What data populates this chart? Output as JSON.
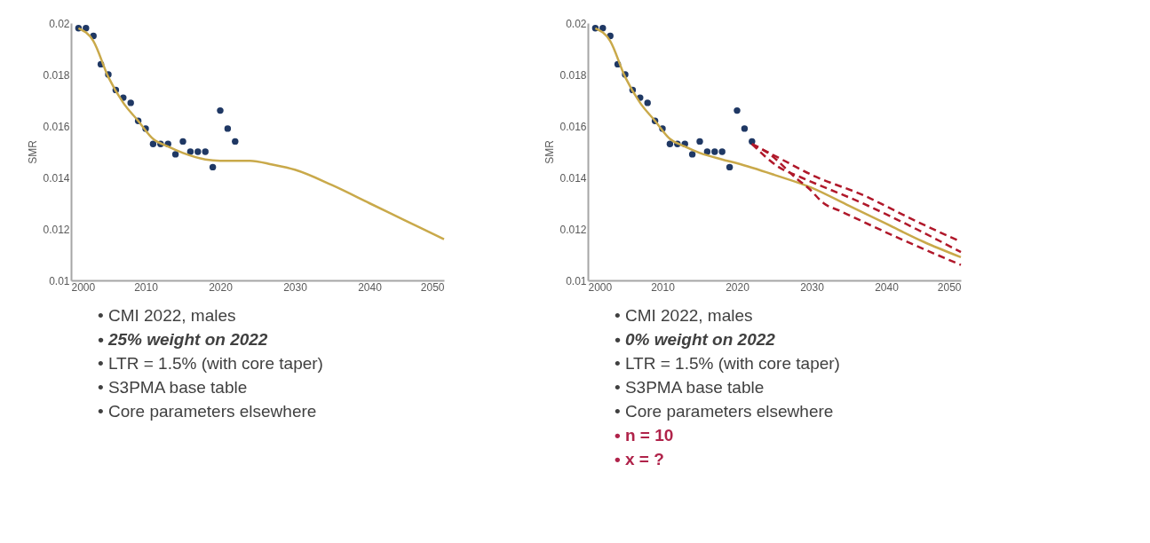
{
  "chart_data": [
    {
      "type": "scatter",
      "ylabel": "SMR",
      "xlim": [
        2000,
        2050
      ],
      "xticks": [
        2000,
        2010,
        2020,
        2030,
        2040,
        2050
      ],
      "ylim": [
        0.01,
        0.02
      ],
      "yticks": [
        0.01,
        0.012,
        0.014,
        0.016,
        0.018,
        0.02
      ],
      "grid": false,
      "series": [
        {
          "marker": "circle",
          "color": "#1f3864",
          "x": [
            2001,
            2002,
            2003,
            2004,
            2005,
            2006,
            2007,
            2008,
            2009,
            2010,
            2011,
            2012,
            2013,
            2014,
            2015,
            2016,
            2017,
            2018,
            2019,
            2020,
            2021,
            2022
          ],
          "values": [
            0.0198,
            0.0198,
            0.0195,
            0.0184,
            0.018,
            0.0174,
            0.0171,
            0.0169,
            0.0162,
            0.0159,
            0.0153,
            0.0153,
            0.0153,
            0.0149,
            0.0154,
            0.015,
            0.015,
            0.015,
            0.0144,
            0.0166,
            0.0159,
            0.0154
          ]
        },
        {
          "type": "line",
          "color": "#c9a94a",
          "x": [
            2001,
            2003,
            2005,
            2007,
            2009,
            2011,
            2013,
            2015,
            2018,
            2020,
            2024,
            2027,
            2030,
            2035,
            2040,
            2045,
            2050
          ],
          "values": [
            0.0198,
            0.0193,
            0.0179,
            0.0169,
            0.0162,
            0.0155,
            0.0152,
            0.01495,
            0.0147,
            0.01465,
            0.01465,
            0.0145,
            0.0143,
            0.0137,
            0.013,
            0.0123,
            0.0116
          ]
        }
      ],
      "annotations": [
        "•   CMI 2022, males",
        "•   25% weight on 2022",
        "•   LTR = 1.5% (with core taper)",
        "•   S3PMA base table",
        "•   Core parameters elsewhere"
      ]
    },
    {
      "type": "scatter",
      "ylabel": "SMR",
      "xlim": [
        2000,
        2050
      ],
      "xticks": [
        2000,
        2010,
        2020,
        2030,
        2040,
        2050
      ],
      "ylim": [
        0.01,
        0.02
      ],
      "yticks": [
        0.01,
        0.012,
        0.014,
        0.016,
        0.018,
        0.02
      ],
      "grid": false,
      "series": [
        {
          "marker": "circle",
          "color": "#1f3864",
          "x": [
            2001,
            2002,
            2003,
            2004,
            2005,
            2006,
            2007,
            2008,
            2009,
            2010,
            2011,
            2012,
            2013,
            2014,
            2015,
            2016,
            2017,
            2018,
            2019,
            2020,
            2021,
            2022
          ],
          "values": [
            0.0198,
            0.0198,
            0.0195,
            0.0184,
            0.018,
            0.0174,
            0.0171,
            0.0169,
            0.0162,
            0.0159,
            0.0153,
            0.0153,
            0.0153,
            0.0149,
            0.0154,
            0.015,
            0.015,
            0.015,
            0.0144,
            0.0166,
            0.0159,
            0.0154
          ]
        },
        {
          "type": "line",
          "color": "#c9a94a",
          "x": [
            2001,
            2003,
            2005,
            2007,
            2009,
            2011,
            2013,
            2015,
            2018,
            2020,
            2025,
            2030,
            2035,
            2040,
            2045,
            2050
          ],
          "values": [
            0.0198,
            0.0193,
            0.0179,
            0.0169,
            0.0162,
            0.0155,
            0.0152,
            0.01495,
            0.0147,
            0.01455,
            0.0141,
            0.0136,
            0.0129,
            0.0122,
            0.0115,
            0.0109
          ]
        },
        {
          "type": "line",
          "line_style": "dashed",
          "color": "#b0182a",
          "x": [
            2022,
            2026,
            2030,
            2037,
            2044,
            2050
          ],
          "values": [
            0.0153,
            0.0147,
            0.0141,
            0.0133,
            0.0123,
            0.0115
          ]
        },
        {
          "type": "line",
          "line_style": "dashed",
          "color": "#b0182a",
          "x": [
            2022,
            2025.6,
            2028.6,
            2036.8,
            2044,
            2050
          ],
          "values": [
            0.0153,
            0.0144,
            0.014,
            0.013,
            0.012,
            0.0111
          ]
        },
        {
          "type": "line",
          "line_style": "dashed",
          "color": "#b0182a",
          "x": [
            2022,
            2024.4,
            2027.8,
            2029.7,
            2031.6,
            2033.8,
            2042,
            2050
          ],
          "values": [
            0.0153,
            0.0149,
            0.014,
            0.01355,
            0.013,
            0.0127,
            0.0116,
            0.0106
          ]
        }
      ],
      "annotations": [
        "•   CMI 2022, males",
        "•   0% weight on 2022",
        "•   LTR = 1.5% (with core taper)",
        "•   S3PMA base table",
        "•   Core parameters elsewhere",
        "•   n = 10",
        "•   x = ?"
      ]
    }
  ]
}
